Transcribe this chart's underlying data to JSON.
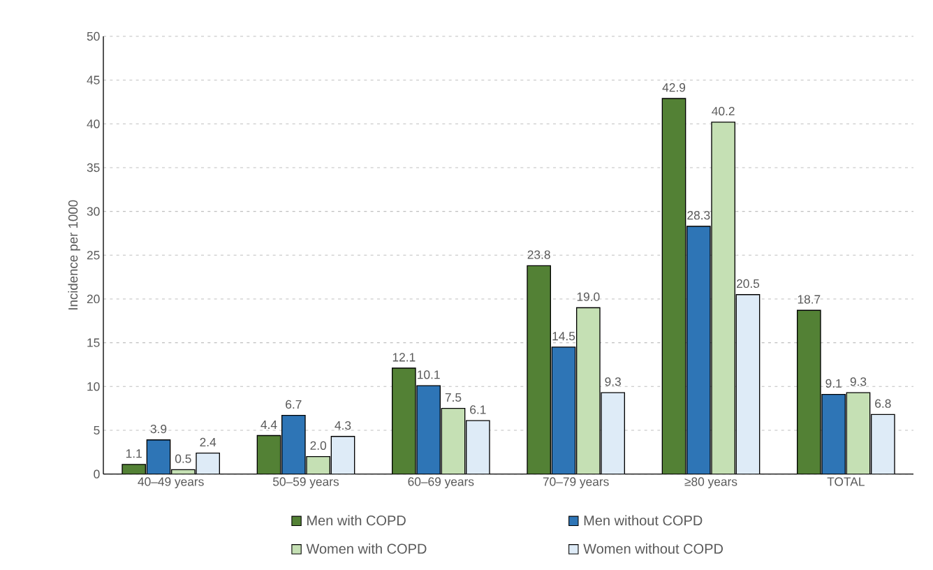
{
  "chart_data": {
    "type": "bar",
    "ylabel": "Incidence per 1000",
    "categories": [
      "40–49 years",
      "50–59 years",
      "60–69 years",
      "70–79 years",
      "≥80 years",
      "TOTAL"
    ],
    "series": [
      {
        "name": "Men with COPD",
        "color": "#538135",
        "values": [
          1.1,
          4.4,
          12.1,
          23.8,
          42.9,
          18.7
        ],
        "value_labels": [
          "1.1",
          "4.4",
          "12.1",
          "23.8",
          "42.9",
          "18.7"
        ]
      },
      {
        "name": "Men without COPD",
        "color": "#2e75b6",
        "values": [
          3.9,
          6.7,
          10.1,
          14.5,
          28.3,
          9.1
        ],
        "value_labels": [
          "3.9",
          "6.7",
          "10.1",
          "14.5",
          "28.3",
          "9.1"
        ]
      },
      {
        "name": "Women with COPD",
        "color": "#c5e0b4",
        "values": [
          0.5,
          2.0,
          7.5,
          19.0,
          40.2,
          9.3
        ],
        "value_labels": [
          "0.5",
          "2.0",
          "7.5",
          "19.0",
          "40.2",
          "9.3"
        ]
      },
      {
        "name": "Women without COPD",
        "color": "#deebf7",
        "values": [
          2.4,
          4.3,
          6.1,
          9.3,
          20.5,
          6.8
        ],
        "value_labels": [
          "2.4",
          "4.3",
          "6.1",
          "9.3",
          "20.5",
          "6.8"
        ]
      }
    ],
    "ylim": [
      0,
      50
    ],
    "yticks": [
      0,
      5,
      10,
      15,
      20,
      25,
      30,
      35,
      40,
      45,
      50
    ],
    "grid": "y",
    "legend": "bottom"
  }
}
